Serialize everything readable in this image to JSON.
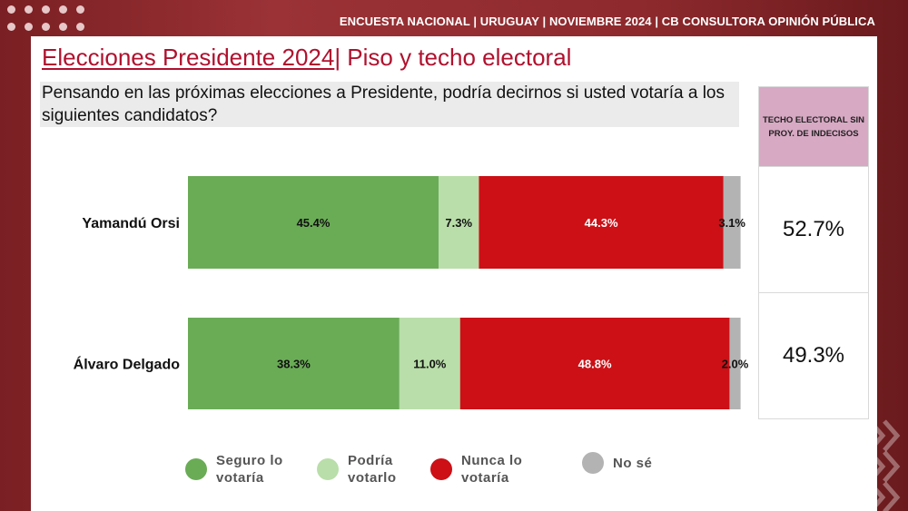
{
  "header": {
    "text": "ENCUESTA NACIONAL  |  URUGUAY | NOVIEMBRE 2024 | CB CONSULTORA OPINIÓN PÚBLICA"
  },
  "title": {
    "main": "Elecciones Presidente 2024",
    "rest": "| Piso y techo electoral"
  },
  "question": "Pensando en las próximas elecciones a Presidente, podría decirnos si usted votaría a los siguientes candidatos?",
  "side_table": {
    "header": "TECHO ELECTORAL SIN PROY. DE INDECISOS",
    "values": [
      "52.7%",
      "49.3%"
    ]
  },
  "colors": {
    "seguro": "#6aac56",
    "podria": "#b9dea9",
    "nunca": "#cc1016",
    "nose": "#b3b3b3",
    "brand": "#b0112e"
  },
  "chart_data": {
    "type": "bar",
    "orientation": "horizontal",
    "stacked": true,
    "categories": [
      "Yamandú Orsi",
      "Álvaro Delgado"
    ],
    "series": [
      {
        "name": "Seguro lo votaría",
        "values": [
          45.4,
          38.3
        ],
        "labels": [
          "45.4%",
          "38.3%"
        ]
      },
      {
        "name": "Podría votarlo",
        "values": [
          7.3,
          11.0
        ],
        "labels": [
          "7.3%",
          "11.0%"
        ]
      },
      {
        "name": "Nunca lo votaría",
        "values": [
          44.3,
          48.8
        ],
        "labels": [
          "44.3%",
          "48.8%"
        ]
      },
      {
        "name": "No sé",
        "values": [
          3.1,
          2.0
        ],
        "labels": [
          "3.1%",
          "2.0%"
        ]
      }
    ],
    "xlim": [
      0,
      100
    ],
    "legend": "bottom"
  },
  "legend": [
    {
      "label": "Seguro lo votaría"
    },
    {
      "label": "Podría votarlo"
    },
    {
      "label": "Nunca lo votaría"
    },
    {
      "label": "No sé"
    }
  ]
}
